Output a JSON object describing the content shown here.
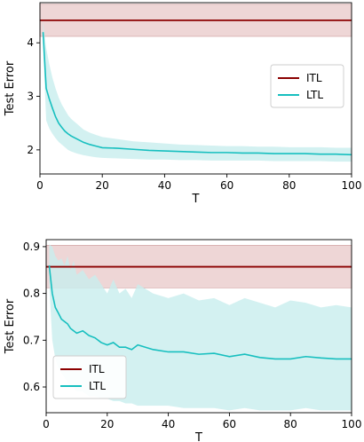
{
  "colors": {
    "itl": "#8b0000",
    "itl_band": "#e8c8c8",
    "ltl": "#17bfbf",
    "ltl_band": "#c8eeee"
  },
  "chart_data": [
    {
      "type": "line",
      "title": "",
      "xlabel": "T",
      "ylabel": "Test Error",
      "xlim": [
        0,
        100
      ],
      "ylim": [
        1.55,
        4.75
      ],
      "xticks": [
        "0",
        "20",
        "40",
        "60",
        "80",
        "100"
      ],
      "yticks": [
        "2",
        "3",
        "4"
      ],
      "grid": false,
      "legend_position": "center-right",
      "series": [
        {
          "name": "ITL",
          "type": "hline",
          "value": 4.42,
          "band": [
            4.12,
            4.72
          ]
        },
        {
          "name": "LTL",
          "x": [
            1,
            2,
            3,
            4,
            5,
            6,
            7,
            8,
            9,
            10,
            12,
            14,
            16,
            18,
            20,
            25,
            30,
            35,
            40,
            45,
            50,
            55,
            60,
            65,
            70,
            75,
            80,
            85,
            90,
            95,
            100
          ],
          "values": [
            4.2,
            3.15,
            2.95,
            2.78,
            2.62,
            2.5,
            2.42,
            2.35,
            2.3,
            2.26,
            2.2,
            2.14,
            2.1,
            2.07,
            2.04,
            2.03,
            2.01,
            1.99,
            1.98,
            1.97,
            1.96,
            1.95,
            1.95,
            1.94,
            1.94,
            1.93,
            1.93,
            1.93,
            1.92,
            1.92,
            1.91
          ],
          "band_upper": [
            4.4,
            3.9,
            3.6,
            3.35,
            3.15,
            2.98,
            2.85,
            2.75,
            2.65,
            2.58,
            2.48,
            2.38,
            2.32,
            2.28,
            2.24,
            2.2,
            2.16,
            2.14,
            2.12,
            2.1,
            2.09,
            2.08,
            2.07,
            2.07,
            2.06,
            2.06,
            2.05,
            2.05,
            2.05,
            2.04,
            2.04
          ],
          "band_lower": [
            3.9,
            2.55,
            2.4,
            2.3,
            2.22,
            2.15,
            2.1,
            2.05,
            2.0,
            1.97,
            1.93,
            1.9,
            1.88,
            1.86,
            1.85,
            1.84,
            1.83,
            1.82,
            1.82,
            1.81,
            1.81,
            1.8,
            1.8,
            1.8,
            1.8,
            1.79,
            1.79,
            1.79,
            1.79,
            1.78,
            1.78
          ]
        }
      ]
    },
    {
      "type": "line",
      "title": "",
      "xlabel": "T",
      "ylabel": "Test Error",
      "xlim": [
        0,
        100
      ],
      "ylim": [
        0.545,
        0.915
      ],
      "xticks": [
        "0",
        "20",
        "40",
        "60",
        "80",
        "100"
      ],
      "yticks": [
        "0.6",
        "0.7",
        "0.8",
        "0.9"
      ],
      "grid": false,
      "legend_position": "lower-left",
      "series": [
        {
          "name": "ITL",
          "type": "hline",
          "value": 0.857,
          "band": [
            0.812,
            0.903
          ]
        },
        {
          "name": "LTL",
          "x": [
            1,
            2,
            3,
            4,
            5,
            6,
            7,
            8,
            9,
            10,
            12,
            14,
            16,
            18,
            20,
            22,
            24,
            26,
            28,
            30,
            35,
            40,
            45,
            50,
            55,
            60,
            65,
            70,
            75,
            80,
            85,
            90,
            95,
            100
          ],
          "values": [
            0.86,
            0.8,
            0.77,
            0.758,
            0.745,
            0.74,
            0.735,
            0.725,
            0.72,
            0.715,
            0.72,
            0.71,
            0.705,
            0.695,
            0.69,
            0.695,
            0.685,
            0.685,
            0.68,
            0.69,
            0.68,
            0.675,
            0.675,
            0.67,
            0.672,
            0.665,
            0.67,
            0.663,
            0.66,
            0.66,
            0.665,
            0.662,
            0.66,
            0.66
          ],
          "band_upper": [
            0.905,
            0.9,
            0.88,
            0.87,
            0.875,
            0.86,
            0.88,
            0.85,
            0.87,
            0.84,
            0.85,
            0.83,
            0.84,
            0.82,
            0.8,
            0.83,
            0.8,
            0.81,
            0.79,
            0.82,
            0.8,
            0.79,
            0.8,
            0.785,
            0.79,
            0.775,
            0.79,
            0.78,
            0.77,
            0.785,
            0.78,
            0.77,
            0.775,
            0.77
          ],
          "band_lower": [
            0.82,
            0.7,
            0.66,
            0.64,
            0.63,
            0.62,
            0.61,
            0.6,
            0.6,
            0.59,
            0.59,
            0.58,
            0.58,
            0.575,
            0.575,
            0.57,
            0.57,
            0.565,
            0.565,
            0.56,
            0.56,
            0.56,
            0.555,
            0.555,
            0.555,
            0.55,
            0.555,
            0.55,
            0.55,
            0.55,
            0.555,
            0.55,
            0.55,
            0.55
          ]
        }
      ]
    }
  ]
}
